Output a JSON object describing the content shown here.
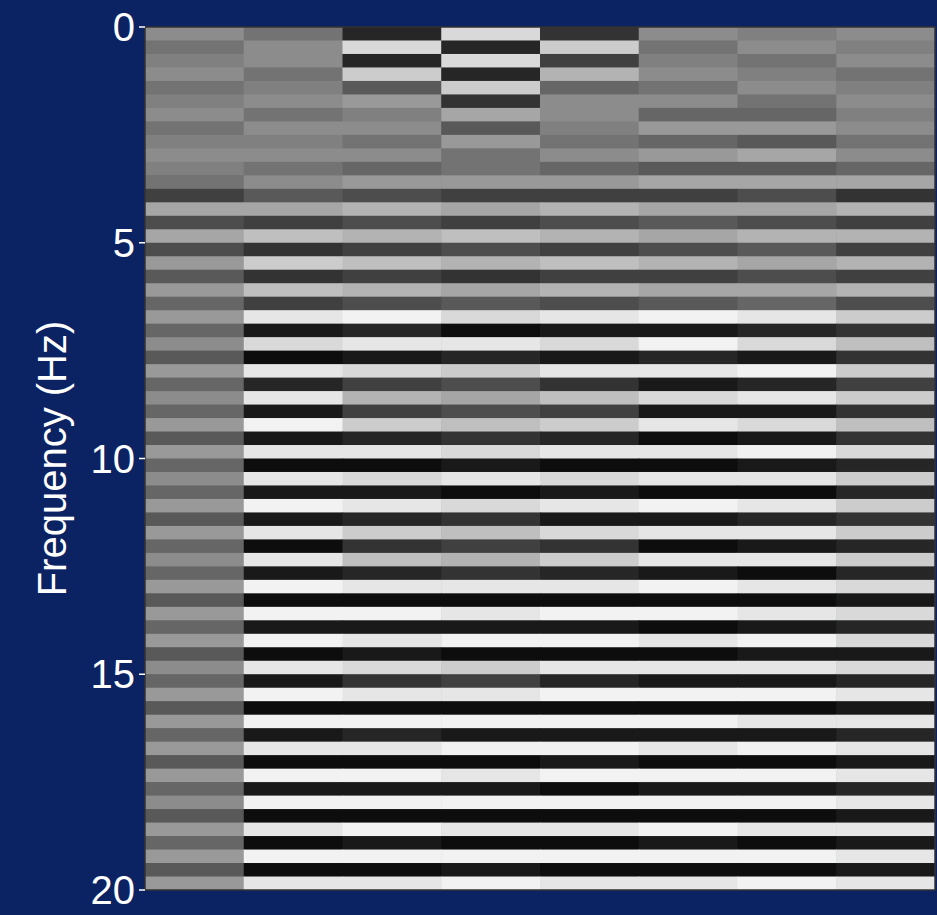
{
  "chart_data": {
    "type": "heatmap",
    "y_label": "Frequency (Hz)",
    "ylim": [
      0,
      20
    ],
    "yticks": [
      0,
      5,
      10,
      15,
      20
    ],
    "tick_labels": "y",
    "zlim": [
      -1,
      1
    ],
    "cells": [
      [
        0.1,
        -0.1,
        -0.7,
        0.7,
        -0.6,
        0.1,
        0.0,
        0.1
      ],
      [
        -0.1,
        0.1,
        0.7,
        -0.7,
        0.6,
        -0.1,
        0.1,
        0.0
      ],
      [
        0.0,
        0.1,
        -0.7,
        0.7,
        -0.5,
        0.0,
        -0.1,
        0.1
      ],
      [
        0.1,
        -0.1,
        0.6,
        -0.7,
        0.4,
        0.1,
        0.0,
        -0.1
      ],
      [
        -0.1,
        0.0,
        -0.3,
        0.6,
        -0.2,
        -0.1,
        0.1,
        0.0
      ],
      [
        0.0,
        0.1,
        0.2,
        -0.6,
        0.1,
        0.1,
        -0.1,
        0.1
      ],
      [
        0.1,
        -0.1,
        0.0,
        0.3,
        0.1,
        -0.2,
        -0.2,
        0.0
      ],
      [
        -0.1,
        0.1,
        0.1,
        -0.3,
        0.0,
        0.2,
        0.2,
        0.1
      ],
      [
        0.0,
        0.0,
        -0.1,
        0.2,
        -0.1,
        -0.2,
        -0.3,
        -0.1
      ],
      [
        0.1,
        0.1,
        0.1,
        -0.1,
        0.1,
        0.2,
        0.3,
        0.1
      ],
      [
        0.0,
        -0.1,
        -0.2,
        -0.1,
        -0.2,
        -0.3,
        -0.3,
        -0.2
      ],
      [
        -0.1,
        0.1,
        0.2,
        0.2,
        0.2,
        0.3,
        0.3,
        0.3
      ],
      [
        -0.5,
        -0.3,
        -0.4,
        -0.5,
        -0.5,
        -0.5,
        -0.4,
        -0.6
      ],
      [
        0.3,
        0.3,
        0.4,
        0.3,
        0.4,
        0.3,
        0.3,
        0.4
      ],
      [
        -0.4,
        -0.5,
        -0.4,
        -0.5,
        -0.4,
        -0.3,
        -0.4,
        -0.5
      ],
      [
        0.3,
        0.5,
        0.4,
        0.5,
        0.4,
        0.3,
        0.4,
        0.4
      ],
      [
        -0.4,
        -0.6,
        -0.5,
        -0.4,
        -0.5,
        -0.4,
        -0.3,
        -0.5
      ],
      [
        0.2,
        0.6,
        0.5,
        0.4,
        0.5,
        0.4,
        0.3,
        0.4
      ],
      [
        -0.3,
        -0.6,
        -0.5,
        -0.6,
        -0.5,
        -0.5,
        -0.4,
        -0.5
      ],
      [
        0.2,
        0.5,
        0.4,
        0.3,
        0.4,
        0.3,
        0.3,
        0.4
      ],
      [
        -0.2,
        -0.5,
        -0.4,
        -0.3,
        -0.4,
        -0.3,
        -0.2,
        -0.4
      ],
      [
        0.2,
        0.8,
        0.9,
        0.7,
        0.8,
        0.9,
        0.8,
        0.6
      ],
      [
        -0.2,
        -0.8,
        -0.7,
        -0.9,
        -0.8,
        -0.8,
        -0.7,
        -0.6
      ],
      [
        0.1,
        0.7,
        0.8,
        0.8,
        0.7,
        0.9,
        0.7,
        0.5
      ],
      [
        -0.3,
        -0.9,
        -0.8,
        -0.7,
        -0.8,
        -0.7,
        -0.8,
        -0.6
      ],
      [
        0.2,
        0.8,
        0.7,
        0.6,
        0.8,
        0.8,
        0.9,
        0.6
      ],
      [
        -0.2,
        -0.7,
        -0.5,
        -0.4,
        -0.6,
        -0.8,
        -0.7,
        -0.5
      ],
      [
        0.1,
        0.8,
        0.4,
        0.3,
        0.5,
        0.7,
        0.8,
        0.6
      ],
      [
        -0.2,
        -0.8,
        -0.5,
        -0.4,
        -0.5,
        -0.8,
        -0.8,
        -0.6
      ],
      [
        0.2,
        0.9,
        0.6,
        0.5,
        0.6,
        0.8,
        0.7,
        0.5
      ],
      [
        -0.3,
        -0.8,
        -0.7,
        -0.6,
        -0.7,
        -0.9,
        -0.8,
        -0.6
      ],
      [
        0.2,
        0.8,
        0.8,
        0.7,
        0.8,
        0.8,
        0.9,
        0.7
      ],
      [
        -0.2,
        -0.9,
        -0.9,
        -0.8,
        -0.9,
        -0.9,
        -0.8,
        -0.7
      ],
      [
        0.1,
        0.8,
        0.7,
        0.8,
        0.7,
        0.8,
        0.8,
        0.6
      ],
      [
        -0.2,
        -0.8,
        -0.8,
        -0.9,
        -0.8,
        -0.9,
        -0.9,
        -0.7
      ],
      [
        0.2,
        0.9,
        0.8,
        0.7,
        0.8,
        0.9,
        0.8,
        0.6
      ],
      [
        -0.3,
        -0.8,
        -0.7,
        -0.6,
        -0.8,
        -0.8,
        -0.7,
        -0.6
      ],
      [
        0.2,
        0.8,
        0.6,
        0.5,
        0.7,
        0.8,
        0.8,
        0.6
      ],
      [
        -0.2,
        -0.9,
        -0.6,
        -0.5,
        -0.6,
        -0.9,
        -0.8,
        -0.7
      ],
      [
        0.1,
        0.8,
        0.5,
        0.4,
        0.6,
        0.8,
        0.8,
        0.6
      ],
      [
        -0.2,
        -0.8,
        -0.7,
        -0.6,
        -0.7,
        -0.8,
        -0.9,
        -0.7
      ],
      [
        0.2,
        0.9,
        0.8,
        0.8,
        0.8,
        0.9,
        0.8,
        0.7
      ],
      [
        -0.3,
        -0.9,
        -0.9,
        -0.9,
        -0.9,
        -0.9,
        -0.9,
        -0.8
      ],
      [
        0.2,
        0.9,
        0.9,
        0.8,
        0.9,
        0.9,
        0.8,
        0.7
      ],
      [
        -0.2,
        -0.8,
        -0.8,
        -0.8,
        -0.8,
        -0.9,
        -0.8,
        -0.7
      ],
      [
        0.2,
        0.9,
        0.8,
        0.9,
        0.9,
        0.8,
        0.9,
        0.7
      ],
      [
        -0.3,
        -0.9,
        -0.8,
        -0.9,
        -0.9,
        -0.9,
        -0.8,
        -0.8
      ],
      [
        0.1,
        0.8,
        0.7,
        0.6,
        0.8,
        0.8,
        0.8,
        0.7
      ],
      [
        -0.2,
        -0.8,
        -0.6,
        -0.5,
        -0.7,
        -0.8,
        -0.8,
        -0.7
      ],
      [
        0.2,
        0.9,
        0.8,
        0.8,
        0.9,
        0.9,
        0.9,
        0.8
      ],
      [
        -0.3,
        -0.9,
        -0.9,
        -0.9,
        -0.9,
        -0.9,
        -0.9,
        -0.8
      ],
      [
        0.2,
        0.9,
        0.9,
        0.9,
        0.9,
        0.9,
        0.8,
        0.8
      ],
      [
        -0.2,
        -0.8,
        -0.7,
        -0.8,
        -0.8,
        -0.8,
        -0.8,
        -0.7
      ],
      [
        0.2,
        0.8,
        0.8,
        0.9,
        0.9,
        0.8,
        0.9,
        0.8
      ],
      [
        -0.3,
        -0.9,
        -0.9,
        -0.9,
        -0.8,
        -0.9,
        -0.9,
        -0.8
      ],
      [
        0.2,
        0.9,
        0.9,
        0.8,
        0.9,
        0.9,
        0.9,
        0.8
      ],
      [
        -0.2,
        -0.8,
        -0.8,
        -0.8,
        -0.9,
        -0.8,
        -0.8,
        -0.7
      ],
      [
        0.1,
        0.9,
        0.9,
        0.9,
        0.9,
        0.9,
        0.9,
        0.8
      ],
      [
        -0.3,
        -0.9,
        -0.9,
        -0.9,
        -0.9,
        -0.9,
        -0.9,
        -0.8
      ],
      [
        0.2,
        0.8,
        0.9,
        0.8,
        0.8,
        0.9,
        0.8,
        0.8
      ],
      [
        -0.2,
        -0.9,
        -0.8,
        -0.9,
        -0.9,
        -0.8,
        -0.9,
        -0.8
      ],
      [
        0.2,
        0.9,
        0.9,
        0.9,
        0.9,
        0.9,
        0.9,
        0.8
      ],
      [
        -0.3,
        -0.9,
        -0.9,
        -0.8,
        -0.9,
        -0.9,
        -0.9,
        -0.8
      ],
      [
        0.2,
        0.8,
        0.8,
        0.9,
        0.8,
        0.8,
        0.9,
        0.8
      ]
    ]
  }
}
